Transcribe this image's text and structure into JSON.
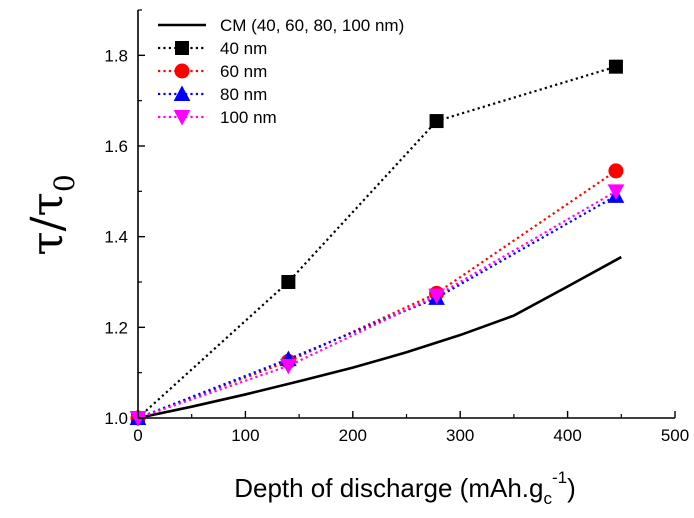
{
  "chart_data": {
    "type": "line",
    "xlabel": {
      "main": "Depth of discharge (mAh.g",
      "sub": "c",
      "sup": "-1",
      "end": ")"
    },
    "ylabel": {
      "main": "τ/τ",
      "sub": "0"
    },
    "xlim": [
      0,
      500
    ],
    "ylim": [
      1.0,
      1.9
    ],
    "xticks": [
      0,
      100,
      200,
      300,
      400,
      500
    ],
    "yticks": [
      1.0,
      1.2,
      1.4,
      1.6,
      1.8
    ],
    "ytick_labels": [
      "1.0",
      "1.2",
      "1.4",
      "1.6",
      "1.8"
    ],
    "legend_position": "top-left",
    "series": [
      {
        "name": "CM (40, 60, 80, 100 nm)",
        "style": "solid",
        "marker": "none",
        "color": "#000000",
        "x": [
          0,
          50,
          100,
          150,
          200,
          250,
          300,
          350,
          400,
          450
        ],
        "y": [
          1.0,
          1.025,
          1.052,
          1.081,
          1.111,
          1.145,
          1.183,
          1.226,
          1.29,
          1.355
        ]
      },
      {
        "name": "40 nm",
        "style": "dotted",
        "marker": "square",
        "color": "#000000",
        "x": [
          0,
          140,
          278,
          445
        ],
        "y": [
          1.0,
          1.3,
          1.655,
          1.775
        ]
      },
      {
        "name": "60 nm",
        "style": "dotted",
        "marker": "circle",
        "color": "#ff0000",
        "x": [
          0,
          140,
          278,
          445
        ],
        "y": [
          1.0,
          1.125,
          1.275,
          1.545
        ]
      },
      {
        "name": "80 nm",
        "style": "dotted",
        "marker": "triangle-up",
        "color": "#0000ff",
        "x": [
          0,
          140,
          278,
          445
        ],
        "y": [
          1.0,
          1.13,
          1.265,
          1.49
        ]
      },
      {
        "name": "100 nm",
        "style": "dotted",
        "marker": "triangle-down",
        "color": "#ff00ff",
        "x": [
          0,
          140,
          278,
          445
        ],
        "y": [
          1.0,
          1.115,
          1.27,
          1.5
        ]
      }
    ]
  }
}
